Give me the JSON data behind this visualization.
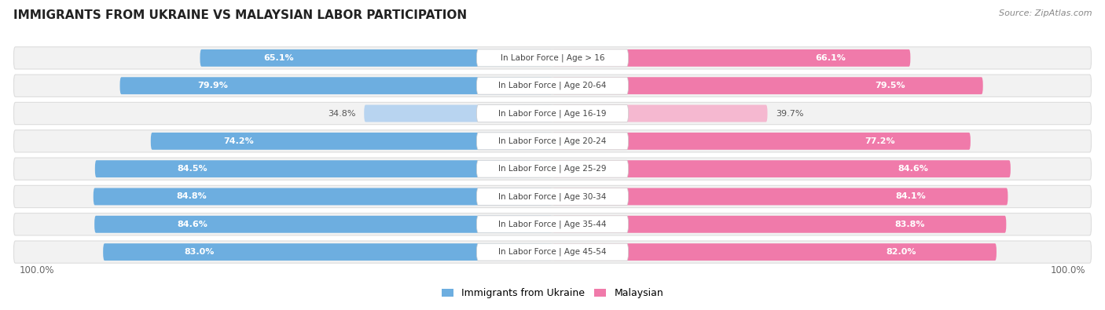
{
  "title": "IMMIGRANTS FROM UKRAINE VS MALAYSIAN LABOR PARTICIPATION",
  "source": "Source: ZipAtlas.com",
  "categories": [
    "In Labor Force | Age > 16",
    "In Labor Force | Age 20-64",
    "In Labor Force | Age 16-19",
    "In Labor Force | Age 20-24",
    "In Labor Force | Age 25-29",
    "In Labor Force | Age 30-34",
    "In Labor Force | Age 35-44",
    "In Labor Force | Age 45-54"
  ],
  "ukraine_values": [
    65.1,
    79.9,
    34.8,
    74.2,
    84.5,
    84.8,
    84.6,
    83.0
  ],
  "malaysia_values": [
    66.1,
    79.5,
    39.7,
    77.2,
    84.6,
    84.1,
    83.8,
    82.0
  ],
  "ukraine_color_dark": "#6daee0",
  "ukraine_color_light": "#b8d4f0",
  "malaysia_color_dark": "#f07aaa",
  "malaysia_color_light": "#f5b8d0",
  "row_bg_color": "#f2f2f2",
  "row_border_color": "#dddddd",
  "label_box_color": "#ffffff",
  "max_value": 100.0,
  "legend_ukraine": "Immigrants from Ukraine",
  "legend_malaysia": "Malaysian",
  "figsize": [
    14.06,
    3.95
  ],
  "dpi": 100,
  "title_fontsize": 11,
  "source_fontsize": 8,
  "label_fontsize": 7.5,
  "value_fontsize": 8,
  "legend_fontsize": 9
}
